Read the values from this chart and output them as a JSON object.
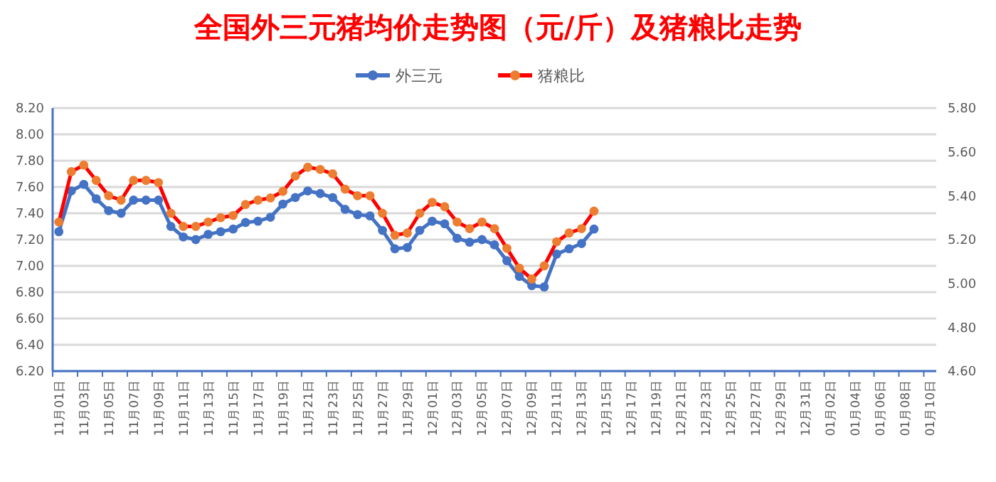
{
  "chart_data": {
    "type": "line",
    "title": "全国外三元猪均价走势图（元/斤）及猪粮比走势",
    "categories": [
      "11月01日",
      null,
      "11月03日",
      null,
      "11月05日",
      null,
      "11月07日",
      null,
      "11月09日",
      null,
      "11月11日",
      null,
      "11月13日",
      null,
      "11月15日",
      null,
      "11月17日",
      null,
      "11月19日",
      null,
      "11月21日",
      null,
      "11月23日",
      null,
      "11月25日",
      null,
      "11月27日",
      null,
      "11月29日",
      null,
      "12月01日",
      null,
      "12月03日",
      null,
      "12月05日",
      null,
      "12月07日",
      null,
      "12月09日",
      null,
      "12月11日",
      null,
      "12月13日",
      null,
      "12月15日",
      null,
      "12月17日",
      null,
      "12月19日",
      null,
      "12月21日",
      null,
      "12月23日",
      null,
      "12月25日",
      null,
      "12月27日",
      null,
      "12月29日",
      null,
      "12月31日",
      null,
      "01月02日",
      null,
      "01月04日",
      null,
      "01月06日",
      null,
      "01月08日",
      null,
      "01月10日"
    ],
    "series": [
      {
        "name": "外三元",
        "color": "#4472c4",
        "values": [
          7.26,
          7.57,
          7.62,
          7.51,
          7.42,
          7.4,
          7.5,
          7.5,
          7.5,
          7.3,
          7.22,
          7.2,
          7.24,
          7.26,
          7.28,
          7.33,
          7.34,
          7.37,
          7.47,
          7.52,
          7.57,
          7.55,
          7.52,
          7.43,
          7.39,
          7.38,
          7.27,
          7.13,
          7.14,
          7.27,
          7.34,
          7.32,
          7.21,
          7.18,
          7.2,
          7.16,
          7.04,
          6.92,
          6.85,
          6.84,
          7.09,
          7.13,
          7.17,
          7.28,
          null,
          null,
          null,
          null,
          null,
          null,
          null,
          null,
          null,
          null,
          null,
          null,
          null,
          null,
          null,
          null,
          null,
          null,
          null,
          null,
          null,
          null,
          null,
          null,
          null,
          null,
          null
        ]
      },
      {
        "name": "猪粮比",
        "color": "#ff0000",
        "axis": "y2",
        "values": [
          5.28,
          5.51,
          5.54,
          5.47,
          5.4,
          5.38,
          5.47,
          5.47,
          5.46,
          5.32,
          5.26,
          5.26,
          5.28,
          5.3,
          5.31,
          5.36,
          5.38,
          5.39,
          5.42,
          5.49,
          5.53,
          5.52,
          5.5,
          5.43,
          5.4,
          5.4,
          5.32,
          5.22,
          5.23,
          5.32,
          5.37,
          5.35,
          5.28,
          5.25,
          5.28,
          5.25,
          5.16,
          5.07,
          5.02,
          5.08,
          5.19,
          5.23,
          5.25,
          5.33,
          null,
          null,
          null,
          null,
          null,
          null,
          null,
          null,
          null,
          null,
          null,
          null,
          null,
          null,
          null,
          null,
          null,
          null,
          null,
          null,
          null,
          null,
          null,
          null,
          null,
          null,
          null
        ]
      }
    ],
    "ylim": [
      6.2,
      8.2
    ],
    "yticks": [
      {
        "value": 6.2,
        "label": "6.20"
      },
      {
        "value": 6.4,
        "label": "6.40"
      },
      {
        "value": 6.6,
        "label": "6.60"
      },
      {
        "value": 6.8,
        "label": "6.80"
      },
      {
        "value": 7.0,
        "label": "7.00"
      },
      {
        "value": 7.2,
        "label": "7.20"
      },
      {
        "value": 7.4,
        "label": "7.40"
      },
      {
        "value": 7.6,
        "label": "7.60"
      },
      {
        "value": 7.8,
        "label": "7.80"
      },
      {
        "value": 8.0,
        "label": "8.00"
      },
      {
        "value": 8.2,
        "label": "8.20"
      }
    ],
    "y2lim": [
      4.6,
      5.8
    ],
    "y2ticks": [
      {
        "value": 4.6,
        "label": "4.60"
      },
      {
        "value": 4.8,
        "label": "4.80"
      },
      {
        "value": 5.0,
        "label": "5.00"
      },
      {
        "value": 5.2,
        "label": "5.20"
      },
      {
        "value": 5.4,
        "label": "5.40"
      },
      {
        "value": 5.6,
        "label": "5.60"
      },
      {
        "value": 5.8,
        "label": "5.80"
      }
    ],
    "grid": "y",
    "legend": "top",
    "marker": "circle",
    "line_style": "solid"
  }
}
